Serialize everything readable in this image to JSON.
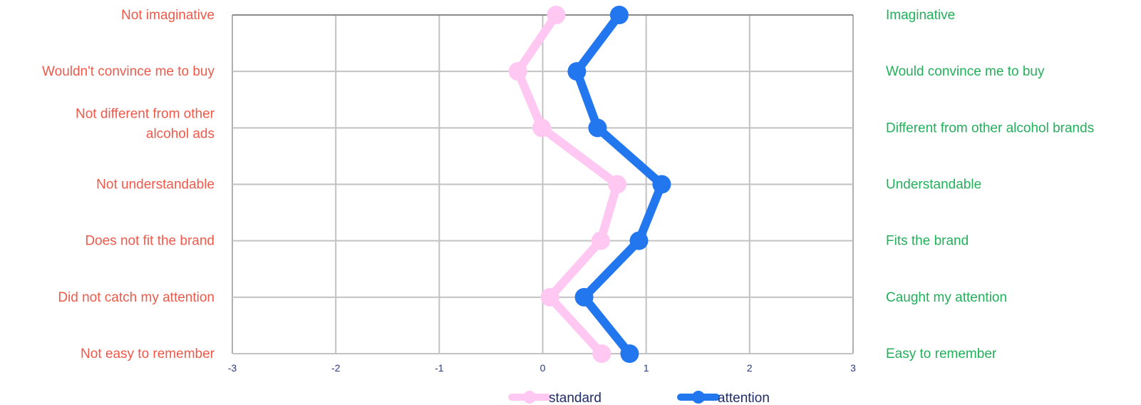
{
  "chart_data": {
    "type": "line",
    "orientation": "vertical-profile",
    "xlim": [
      -3,
      3
    ],
    "x_ticks": [
      "-3",
      "-2",
      "-1",
      "0",
      "1",
      "2",
      "3"
    ],
    "left_labels": [
      [
        "Not imaginative"
      ],
      [
        "Wouldn't convince me to buy"
      ],
      [
        "Not different from other",
        "alcohol  ads"
      ],
      [
        "Not understandable"
      ],
      [
        "Does not fit the brand"
      ],
      [
        "Did not catch my attention"
      ],
      [
        "Not easy to remember"
      ]
    ],
    "right_labels": [
      "Imaginative",
      "Would convince me to buy",
      "Different from other alcohol brands",
      "Understandable",
      "Fits the brand",
      "Caught my attention",
      "Easy to remember"
    ],
    "series": [
      {
        "name": "standard",
        "color": "#ffc8f2",
        "values": [
          0.13,
          -0.24,
          -0.01,
          0.72,
          0.56,
          0.07,
          0.57
        ]
      },
      {
        "name": "attention",
        "color": "#2276ee",
        "values": [
          0.74,
          0.33,
          0.53,
          1.15,
          0.93,
          0.4,
          0.84
        ]
      }
    ],
    "grid": true,
    "legend_position": "bottom"
  }
}
